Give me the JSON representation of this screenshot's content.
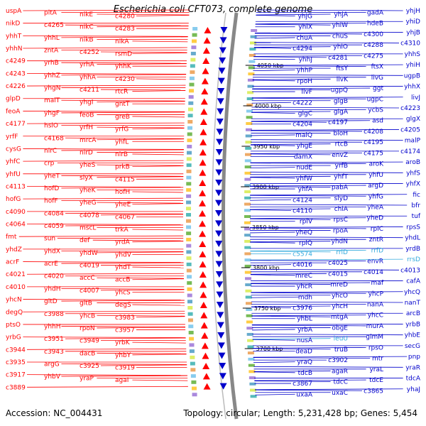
{
  "title": "Escherichia coli CFT073, complete genome",
  "footer": {
    "accession_label": "Accession:",
    "accession": "NC_004431",
    "topology_label": "Topology:",
    "topology": "circular",
    "length_label": "Length:",
    "length": "5,231,428 bp",
    "genes_label": "Genes:",
    "genes": "5,454"
  },
  "colors": {
    "forward_strand": "#ff0000",
    "reverse_strand": "#0000cc",
    "rna_feature": "#33aadd",
    "backbone": "#888888"
  },
  "icons": [
    "forward-strand-arrow-icon",
    "reverse-strand-arrow-icon"
  ],
  "scale_marks": [
    {
      "label": "4050 kbp"
    },
    {
      "label": "4000 kbp"
    },
    {
      "label": "3950 kbp"
    },
    {
      "label": "3900 kbp"
    },
    {
      "label": "3850 kbp"
    },
    {
      "label": "3800 kbp"
    },
    {
      "label": "3750 kbp"
    },
    {
      "label": "3700 kbp"
    }
  ],
  "left_labels": [
    "uspA",
    "pitA",
    "nikE",
    "c4280",
    "nikD",
    "c4265",
    "nikC",
    "c4283",
    "yhhT",
    "yhhL",
    "nikB",
    "nikA",
    "yhhN",
    "zntA",
    "c4252",
    "rsmD",
    "c4249",
    "yrhB",
    "yrhA",
    "yhhK",
    "c4243",
    "yhhZ",
    "yhhA",
    "c4230",
    "c4226",
    "yhgN",
    "c4211",
    "rtcR",
    "glpD",
    "malT",
    "yhgI",
    "gntT",
    "feoA",
    "yhgF",
    "feoB",
    "greB",
    "c4177",
    "hslO",
    "yrfH",
    "yrfG",
    "yrfF",
    "c4168",
    "mrcA",
    "yhfL",
    "cysG",
    "nirC",
    "nirD",
    "nirB",
    "yhfC",
    "crp",
    "yheS",
    "prkB",
    "yhfU",
    "yheT",
    "slyX",
    "c4115",
    "c4113",
    "hofD",
    "yheK",
    "hofH",
    "hofG",
    "hofF",
    "yheG",
    "yheE",
    "c4090",
    "c4084",
    "c4078",
    "c4067",
    "c4064",
    "c4059",
    "mscL",
    "trkA",
    "fmt",
    "sun",
    "def",
    "yrdA",
    "yhdZ",
    "yhdX",
    "yhdW",
    "yhdV",
    "acrF",
    "acrE",
    "c4019",
    "yhdT",
    "c4021",
    "c4020",
    "accC",
    "accB",
    "c4010",
    "yhdH",
    "c4007",
    "yhcS",
    "yhcN",
    "gltD",
    "gltB",
    "degS",
    "degQ",
    "c3988",
    "yhcB",
    "c3983",
    "ptsO",
    "yhhH",
    "rpoN",
    "c3957",
    "yrbG",
    "c3951",
    "c3949",
    "yrbK",
    "c3944",
    "c3943",
    "dacB",
    "yhbY",
    "c3935",
    "argG",
    "c3925",
    "c3919",
    "c3917",
    "yhbV",
    "yraP",
    "agaI",
    "c3889"
  ],
  "right_labels": [
    "yhjH",
    "gadA",
    "yhjA",
    "yhjG",
    "yhiD",
    "hdeB",
    "yhiW",
    "yhiX",
    "yhjB",
    "c4300",
    "chuS",
    "chuA",
    "c4310",
    "c4288",
    "yhiO",
    "c4294",
    "yhhS",
    "c4275",
    "c4281",
    "yhhJ",
    "yhiH",
    "ftsX",
    "ftsY",
    "yhhP",
    "ugpB",
    "livG",
    "livK",
    "rpoH",
    "yhhX",
    "ggt",
    "ugpQ",
    "livF",
    "livJ",
    "ugpC",
    "glgB",
    "c4222",
    "c4223",
    "ycbS",
    "glgA",
    "glgC",
    "glgX",
    "asd",
    "c4197",
    "c4204",
    "c4205",
    "c4208",
    "bioH",
    "malQ",
    "malP",
    "c4195",
    "rtcB",
    "yhgE",
    "c4174",
    "c4175",
    "envZ",
    "damX",
    "aroB",
    "aroK",
    "yrfB",
    "nudE",
    "yhfS",
    "yhfU",
    "yhfT",
    "yhfW",
    "yhfX",
    "argD",
    "pabA",
    "yhfA",
    "fic",
    "yhfG",
    "slyD",
    "c4124",
    "bfr",
    "yheA",
    "chiA",
    "c4110",
    "tuf",
    "yheD",
    "rpsC",
    "rplV",
    "rpsS",
    "rplC",
    "rpoA",
    "yheQ",
    "yhdL",
    "zntR",
    "yhdN",
    "rplQ",
    "yrdB",
    "rrfD",
    "rrlD",
    "c5574",
    "rrsD",
    "envR",
    "c4025",
    "c4016",
    "c4013",
    "c4014",
    "c4015",
    "mreC",
    "cafA",
    "maf",
    "mreD",
    "yhcR",
    "yhcQ",
    "yhcP",
    "yhcO",
    "mdh",
    "nanT",
    "nanA",
    "yhcH",
    "c3976",
    "arcB",
    "yhcC",
    "mtgA",
    "yhbL",
    "yrbB",
    "murA",
    "obgE",
    "yrbA",
    "yhbE",
    "glmM",
    "leuU",
    "nusA",
    "secG",
    "rpsO",
    "truB",
    "deaD",
    "pnp",
    "mtr",
    "c3902",
    "yraQ",
    "yraR",
    "yraL",
    "agaR",
    "tdcB",
    "tdcA",
    "tdcE",
    "tdcC",
    "c3867",
    "yhaJ",
    "c3865",
    "uxaC",
    "uxaA"
  ]
}
